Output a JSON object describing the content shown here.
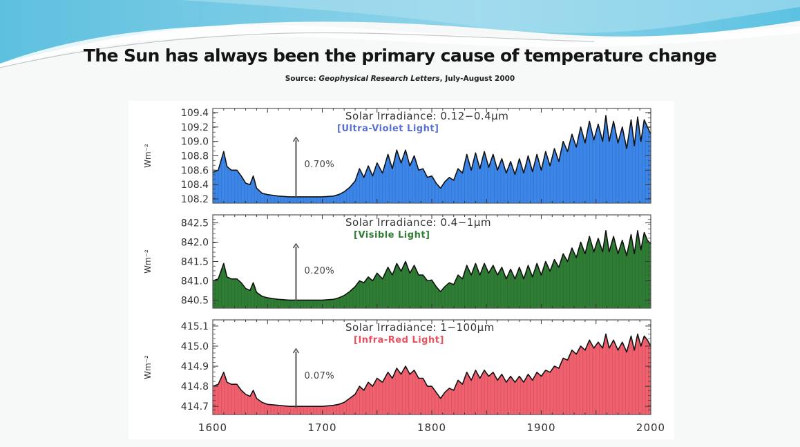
{
  "slide": {
    "title": "The Sun has always been the primary cause of temperature change",
    "source_prefix": "Source: ",
    "source_journal": "Geophysical Research Letters",
    "source_suffix": ", July-August 2000"
  },
  "colors": {
    "banner_light": "#bfe6f2",
    "banner_mid": "#62c3e0",
    "uv_fill": "#3b86e8",
    "visible_fill": "#2f7d34",
    "ir_fill": "#f0606e",
    "outline": "#111111",
    "arrow": "#555555"
  },
  "chart_data": [
    {
      "type": "area",
      "title": "Solar Irradiance: 0.12−0.4μm",
      "subtitle": "[Ultra-Violet Light]",
      "subtitle_color": "#5a6fd0",
      "fill_color": "#3b86e8",
      "ylabel": "Wm⁻²",
      "xlim": [
        1600,
        2000
      ],
      "ylim": [
        108.2,
        109.4
      ],
      "yticks": [
        "109.4",
        "109.2",
        "109.0",
        "108.8",
        "108.6",
        "108.4",
        "108.2"
      ],
      "annotation": {
        "label": "0.70%",
        "year": 1676
      },
      "x": [
        1600,
        1605,
        1610,
        1613,
        1617,
        1622,
        1626,
        1630,
        1634,
        1637,
        1640,
        1645,
        1650,
        1660,
        1670,
        1680,
        1690,
        1700,
        1710,
        1715,
        1720,
        1725,
        1730,
        1734,
        1738,
        1742,
        1746,
        1750,
        1755,
        1760,
        1764,
        1768,
        1772,
        1776,
        1780,
        1784,
        1788,
        1792,
        1796,
        1800,
        1804,
        1808,
        1812,
        1816,
        1820,
        1824,
        1828,
        1832,
        1836,
        1840,
        1844,
        1848,
        1852,
        1856,
        1860,
        1864,
        1868,
        1872,
        1876,
        1880,
        1884,
        1888,
        1892,
        1896,
        1900,
        1904,
        1908,
        1912,
        1916,
        1920,
        1924,
        1928,
        1932,
        1936,
        1940,
        1944,
        1948,
        1952,
        1956,
        1959,
        1962,
        1966,
        1970,
        1974,
        1978,
        1982,
        1985,
        1988,
        1991,
        1994,
        1997,
        2000
      ],
      "y": [
        108.57,
        108.6,
        108.86,
        108.65,
        108.6,
        108.6,
        108.52,
        108.42,
        108.4,
        108.52,
        108.35,
        108.28,
        108.26,
        108.24,
        108.23,
        108.23,
        108.23,
        108.23,
        108.24,
        108.26,
        108.3,
        108.36,
        108.45,
        108.62,
        108.5,
        108.66,
        108.52,
        108.7,
        108.56,
        108.82,
        108.62,
        108.88,
        108.7,
        108.88,
        108.66,
        108.8,
        108.6,
        108.62,
        108.5,
        108.52,
        108.42,
        108.35,
        108.44,
        108.5,
        108.46,
        108.62,
        108.56,
        108.82,
        108.6,
        108.84,
        108.62,
        108.86,
        108.64,
        108.82,
        108.6,
        108.76,
        108.56,
        108.72,
        108.54,
        108.76,
        108.56,
        108.8,
        108.58,
        108.82,
        108.6,
        108.86,
        108.66,
        108.9,
        108.72,
        109.0,
        108.86,
        109.1,
        108.92,
        109.2,
        108.98,
        109.28,
        109.02,
        109.24,
        109.0,
        109.36,
        109.0,
        109.28,
        108.98,
        109.2,
        108.9,
        109.3,
        108.94,
        109.34,
        109.0,
        109.3,
        109.2,
        109.1
      ]
    },
    {
      "type": "area",
      "title": "Solar Irradiance: 0.4−1μm",
      "subtitle": "[Visible Light]",
      "subtitle_color": "#2f7d34",
      "fill_color": "#2f7d34",
      "ylabel": "Wm⁻²",
      "xlim": [
        1600,
        2000
      ],
      "ylim": [
        840.4,
        842.6
      ],
      "yticks": [
        "842.5",
        "842.0",
        "841.5",
        "841.0",
        "840.5"
      ],
      "annotation": {
        "label": "0.20%",
        "year": 1676
      },
      "x": [
        1600,
        1605,
        1610,
        1613,
        1617,
        1622,
        1626,
        1630,
        1634,
        1637,
        1640,
        1645,
        1650,
        1660,
        1670,
        1680,
        1690,
        1700,
        1710,
        1715,
        1720,
        1725,
        1730,
        1734,
        1738,
        1742,
        1746,
        1750,
        1755,
        1760,
        1764,
        1768,
        1772,
        1776,
        1780,
        1784,
        1788,
        1792,
        1796,
        1800,
        1804,
        1808,
        1812,
        1816,
        1820,
        1824,
        1828,
        1832,
        1836,
        1840,
        1844,
        1848,
        1852,
        1856,
        1860,
        1864,
        1868,
        1872,
        1876,
        1880,
        1884,
        1888,
        1892,
        1896,
        1900,
        1904,
        1908,
        1912,
        1916,
        1920,
        1924,
        1928,
        1932,
        1936,
        1940,
        1944,
        1948,
        1952,
        1956,
        1959,
        1962,
        1966,
        1970,
        1974,
        1978,
        1982,
        1985,
        1988,
        1991,
        1994,
        1997,
        2000
      ],
      "y": [
        841.0,
        841.05,
        841.45,
        841.1,
        841.05,
        841.05,
        840.95,
        840.8,
        840.75,
        840.95,
        840.7,
        840.6,
        840.56,
        840.52,
        840.5,
        840.5,
        840.5,
        840.5,
        840.52,
        840.56,
        840.62,
        840.72,
        840.85,
        841.0,
        840.95,
        841.1,
        841.0,
        841.2,
        841.05,
        841.35,
        841.15,
        841.45,
        841.25,
        841.5,
        841.2,
        841.4,
        841.15,
        841.15,
        841.0,
        841.02,
        840.85,
        840.72,
        840.85,
        840.95,
        840.9,
        841.15,
        841.05,
        841.4,
        841.15,
        841.45,
        841.15,
        841.45,
        841.2,
        841.4,
        841.15,
        841.35,
        841.05,
        841.3,
        841.05,
        841.35,
        841.05,
        841.4,
        841.1,
        841.45,
        841.15,
        841.5,
        841.25,
        841.55,
        841.35,
        841.7,
        841.5,
        841.85,
        841.6,
        842.0,
        841.7,
        842.15,
        841.75,
        842.1,
        841.75,
        842.3,
        841.75,
        842.15,
        841.7,
        842.05,
        841.65,
        842.2,
        841.7,
        842.3,
        841.8,
        842.25,
        842.05,
        841.95
      ]
    },
    {
      "type": "area",
      "title": "Solar Irradiance: 1−100μm",
      "subtitle": "[Infra-Red Light]",
      "subtitle_color": "#e8505e",
      "fill_color": "#f0606e",
      "ylabel": "Wm⁻²",
      "xlim": [
        1600,
        2000
      ],
      "ylim": [
        414.68,
        415.11
      ],
      "yticks": [
        "415.1",
        "415.0",
        "414.9",
        "414.8",
        "414.7"
      ],
      "annotation": {
        "label": "0.07%",
        "year": 1676
      },
      "x": [
        1600,
        1605,
        1610,
        1613,
        1617,
        1622,
        1626,
        1630,
        1634,
        1637,
        1640,
        1645,
        1650,
        1660,
        1670,
        1680,
        1690,
        1700,
        1710,
        1715,
        1720,
        1725,
        1730,
        1734,
        1738,
        1742,
        1746,
        1750,
        1755,
        1760,
        1764,
        1768,
        1772,
        1776,
        1780,
        1784,
        1788,
        1792,
        1796,
        1800,
        1804,
        1808,
        1812,
        1816,
        1820,
        1824,
        1828,
        1832,
        1836,
        1840,
        1844,
        1848,
        1852,
        1856,
        1860,
        1864,
        1868,
        1872,
        1876,
        1880,
        1884,
        1888,
        1892,
        1896,
        1900,
        1904,
        1908,
        1912,
        1916,
        1920,
        1924,
        1928,
        1932,
        1936,
        1940,
        1944,
        1948,
        1952,
        1956,
        1959,
        1962,
        1966,
        1970,
        1974,
        1978,
        1982,
        1985,
        1988,
        1991,
        1994,
        1997,
        2000
      ],
      "y": [
        414.8,
        414.81,
        414.87,
        414.82,
        414.81,
        414.81,
        414.78,
        414.76,
        414.75,
        414.78,
        414.74,
        414.72,
        414.71,
        414.705,
        414.7,
        414.7,
        414.7,
        414.7,
        414.705,
        414.71,
        414.72,
        414.74,
        414.76,
        414.8,
        414.78,
        414.82,
        414.8,
        414.84,
        414.82,
        414.87,
        414.84,
        414.89,
        414.86,
        414.9,
        414.86,
        414.88,
        414.84,
        414.84,
        414.8,
        414.8,
        414.77,
        414.74,
        414.77,
        414.79,
        414.78,
        414.83,
        414.81,
        414.87,
        414.83,
        414.88,
        414.84,
        414.88,
        414.85,
        414.87,
        414.83,
        414.86,
        414.82,
        414.85,
        414.82,
        414.85,
        414.82,
        414.86,
        414.83,
        414.87,
        414.85,
        414.88,
        414.87,
        414.9,
        414.89,
        414.94,
        414.93,
        414.98,
        414.96,
        415.0,
        414.98,
        415.03,
        414.99,
        415.02,
        414.99,
        415.06,
        414.99,
        415.03,
        414.98,
        415.02,
        414.97,
        415.05,
        414.98,
        415.06,
        415.0,
        415.05,
        415.03,
        415.0
      ]
    }
  ],
  "xaxis": {
    "ticks": [
      "1600",
      "1700",
      "1800",
      "1900",
      "2000"
    ]
  }
}
